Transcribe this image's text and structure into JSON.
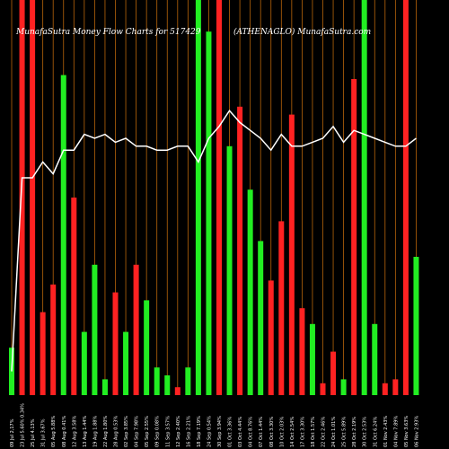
{
  "chart_data": {
    "type": "bar",
    "title_left": "MunafaSutra  Money Flow  Charts for 517429",
    "title_right": "(ATHENAGLO) MunafaSutra.com",
    "colors": {
      "background": "#000000",
      "up": "#22ee22",
      "down": "#ff2222",
      "line": "#ffffff",
      "grid": "#b8650a"
    },
    "categories": [
      "09 Jul 2,17%",
      "23 Jul 5.60% 0.34%",
      "25 Jul 4.13%",
      "31 Jul 3.67%",
      "05 Aug 5.88%",
      "08 Aug 0.41%",
      "12 Aug 3.58%",
      "13 Aug 1.44%",
      "19 Aug 1.88%",
      "22 Aug 1.80%",
      "28 Aug 0.53%",
      "02 Sep 3.85%",
      "04 Sep 7.98%",
      "05 Sep 2.55%",
      "09 Sep 0.08%",
      "11 Sep 3.57%",
      "12 Sep 2.40%",
      "16 Sep 2.21%",
      "18 Sep 7.19%",
      "24 Sep 0.54%",
      "30 Sep 3.94%",
      "01 Oct 3.36%",
      "03 Oct 4.44%",
      "04 Oct 8.76%",
      "07 Oct 1.44%",
      "08 Oct 3.30%",
      "10 Oct 2.03%",
      "14 Oct 2.54%",
      "17 Oct 3.30%",
      "18 Oct 1.57%",
      "22 Oct 2.46%",
      "24 Oct 1.01%",
      "25 Oct 5.89%",
      "28 Oct 2.19%",
      "30 Oct 2.53%",
      "31 Oct 6.24%",
      "01 Nov 2.43%",
      "04 Nov 7.89%",
      "05 Nov 3.63%",
      "06 Nov 2.93%"
    ],
    "bar_colors": [
      "up",
      "down",
      "down",
      "down",
      "down",
      "up",
      "down",
      "up",
      "up",
      "up",
      "down",
      "up",
      "down",
      "up",
      "up",
      "up",
      "down",
      "up",
      "up",
      "up",
      "down",
      "up",
      "down",
      "up",
      "up",
      "down",
      "down",
      "down",
      "down",
      "up",
      "down",
      "down",
      "up",
      "down",
      "up",
      "up",
      "down",
      "down",
      "down",
      "up"
    ],
    "bar_values": [
      12,
      100,
      100,
      21,
      28,
      81,
      50,
      16,
      33,
      4,
      26,
      16,
      33,
      24,
      7,
      5,
      2,
      7,
      100,
      92,
      100,
      63,
      73,
      52,
      39,
      29,
      44,
      71,
      22,
      18,
      3,
      11,
      4,
      80,
      100,
      18,
      3,
      4,
      100,
      35
    ],
    "line_values": [
      6,
      55,
      55,
      59,
      56,
      62,
      62,
      66,
      65,
      66,
      64,
      65,
      63,
      63,
      62,
      62,
      63,
      63,
      59,
      65,
      68,
      72,
      69,
      67,
      65,
      62,
      66,
      63,
      63,
      64,
      65,
      68,
      64,
      67,
      66,
      65,
      64,
      63,
      63,
      65
    ],
    "ylim": [
      0,
      100
    ]
  }
}
